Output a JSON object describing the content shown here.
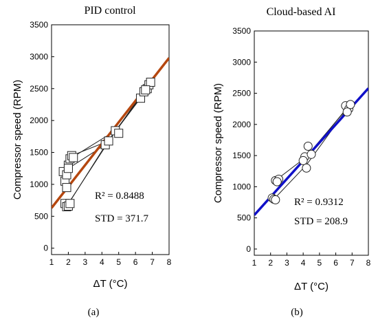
{
  "chart_data": [
    {
      "type": "scatter",
      "title": "PID control",
      "caption": "(a)",
      "xlabel": "ΔT (°C)",
      "ylabel": "Compressor speed (RPM)",
      "xlim": [
        1,
        8
      ],
      "ylim": [
        -100,
        3500
      ],
      "xticks": [
        1,
        2,
        3,
        4,
        5,
        6,
        7,
        8
      ],
      "yticks": [
        0,
        500,
        1000,
        1500,
        2000,
        2500,
        3000,
        3500
      ],
      "marker": "square",
      "points": [
        {
          "x": 1.7,
          "y": 1200
        },
        {
          "x": 1.8,
          "y": 1050
        },
        {
          "x": 1.9,
          "y": 950
        },
        {
          "x": 1.8,
          "y": 700
        },
        {
          "x": 1.9,
          "y": 650
        },
        {
          "x": 2.0,
          "y": 660
        },
        {
          "x": 2.1,
          "y": 700
        },
        {
          "x": 1.9,
          "y": 1150
        },
        {
          "x": 2.0,
          "y": 1300
        },
        {
          "x": 2.1,
          "y": 1400
        },
        {
          "x": 2.2,
          "y": 1450
        },
        {
          "x": 2.3,
          "y": 1420
        },
        {
          "x": 2.0,
          "y": 1250
        },
        {
          "x": 4.2,
          "y": 1620
        },
        {
          "x": 4.4,
          "y": 1680
        },
        {
          "x": 4.8,
          "y": 1840
        },
        {
          "x": 5.0,
          "y": 1800
        },
        {
          "x": 6.3,
          "y": 2350
        },
        {
          "x": 6.5,
          "y": 2450
        },
        {
          "x": 6.7,
          "y": 2500
        },
        {
          "x": 6.8,
          "y": 2560
        },
        {
          "x": 6.9,
          "y": 2600
        },
        {
          "x": 6.6,
          "y": 2480
        }
      ],
      "traces": [
        [
          {
            "x": 1.9,
            "y": 650
          },
          {
            "x": 4.3,
            "y": 1650
          },
          {
            "x": 6.8,
            "y": 2550
          }
        ],
        [
          {
            "x": 2.0,
            "y": 700
          },
          {
            "x": 4.6,
            "y": 1750
          },
          {
            "x": 6.9,
            "y": 2620
          }
        ],
        [
          {
            "x": 2.2,
            "y": 1450
          },
          {
            "x": 4.4,
            "y": 1680
          },
          {
            "x": 6.6,
            "y": 2480
          }
        ],
        [
          {
            "x": 1.7,
            "y": 1200
          },
          {
            "x": 4.2,
            "y": 1620
          },
          {
            "x": 6.3,
            "y": 2350
          }
        ],
        [
          {
            "x": 2.1,
            "y": 1400
          },
          {
            "x": 4.8,
            "y": 1840
          },
          {
            "x": 6.7,
            "y": 2500
          }
        ]
      ],
      "fit": {
        "color": "#b5470f",
        "x": [
          1,
          8
        ],
        "y": [
          630,
          2980
        ]
      },
      "annotations": [
        "R² = 0.8488",
        "STD = 371.7"
      ]
    },
    {
      "type": "scatter",
      "title": "Cloud-based AI",
      "caption": "(b)",
      "xlabel": "ΔT (°C)",
      "ylabel": "Compressor speed (RPM)",
      "xlim": [
        1,
        8
      ],
      "ylim": [
        -100,
        3500
      ],
      "xticks": [
        1,
        2,
        3,
        4,
        5,
        6,
        7,
        8
      ],
      "yticks": [
        0,
        500,
        1000,
        1500,
        2000,
        2500,
        3000,
        3500
      ],
      "marker": "circle",
      "points": [
        {
          "x": 2.1,
          "y": 820
        },
        {
          "x": 2.2,
          "y": 800
        },
        {
          "x": 2.3,
          "y": 790
        },
        {
          "x": 2.3,
          "y": 1100
        },
        {
          "x": 2.5,
          "y": 1120
        },
        {
          "x": 2.4,
          "y": 1080
        },
        {
          "x": 4.2,
          "y": 1300
        },
        {
          "x": 4.1,
          "y": 1480
        },
        {
          "x": 4.3,
          "y": 1650
        },
        {
          "x": 4.5,
          "y": 1520
        },
        {
          "x": 4.0,
          "y": 1420
        },
        {
          "x": 6.6,
          "y": 2300
        },
        {
          "x": 6.8,
          "y": 2250
        },
        {
          "x": 6.9,
          "y": 2320
        },
        {
          "x": 6.7,
          "y": 2200
        }
      ],
      "traces": [
        [
          {
            "x": 2.2,
            "y": 800
          },
          {
            "x": 4.2,
            "y": 1350
          },
          {
            "x": 6.7,
            "y": 2250
          }
        ],
        [
          {
            "x": 2.3,
            "y": 1100
          },
          {
            "x": 4.3,
            "y": 1500
          },
          {
            "x": 6.8,
            "y": 2300
          }
        ],
        [
          {
            "x": 2.1,
            "y": 850
          },
          {
            "x": 4.5,
            "y": 1580
          },
          {
            "x": 6.9,
            "y": 2320
          }
        ]
      ],
      "fit": {
        "color": "#1010c8",
        "x": [
          1,
          8
        ],
        "y": [
          545,
          2580
        ]
      },
      "annotations": [
        "R² = 0.9312",
        "STD = 208.9"
      ]
    }
  ]
}
